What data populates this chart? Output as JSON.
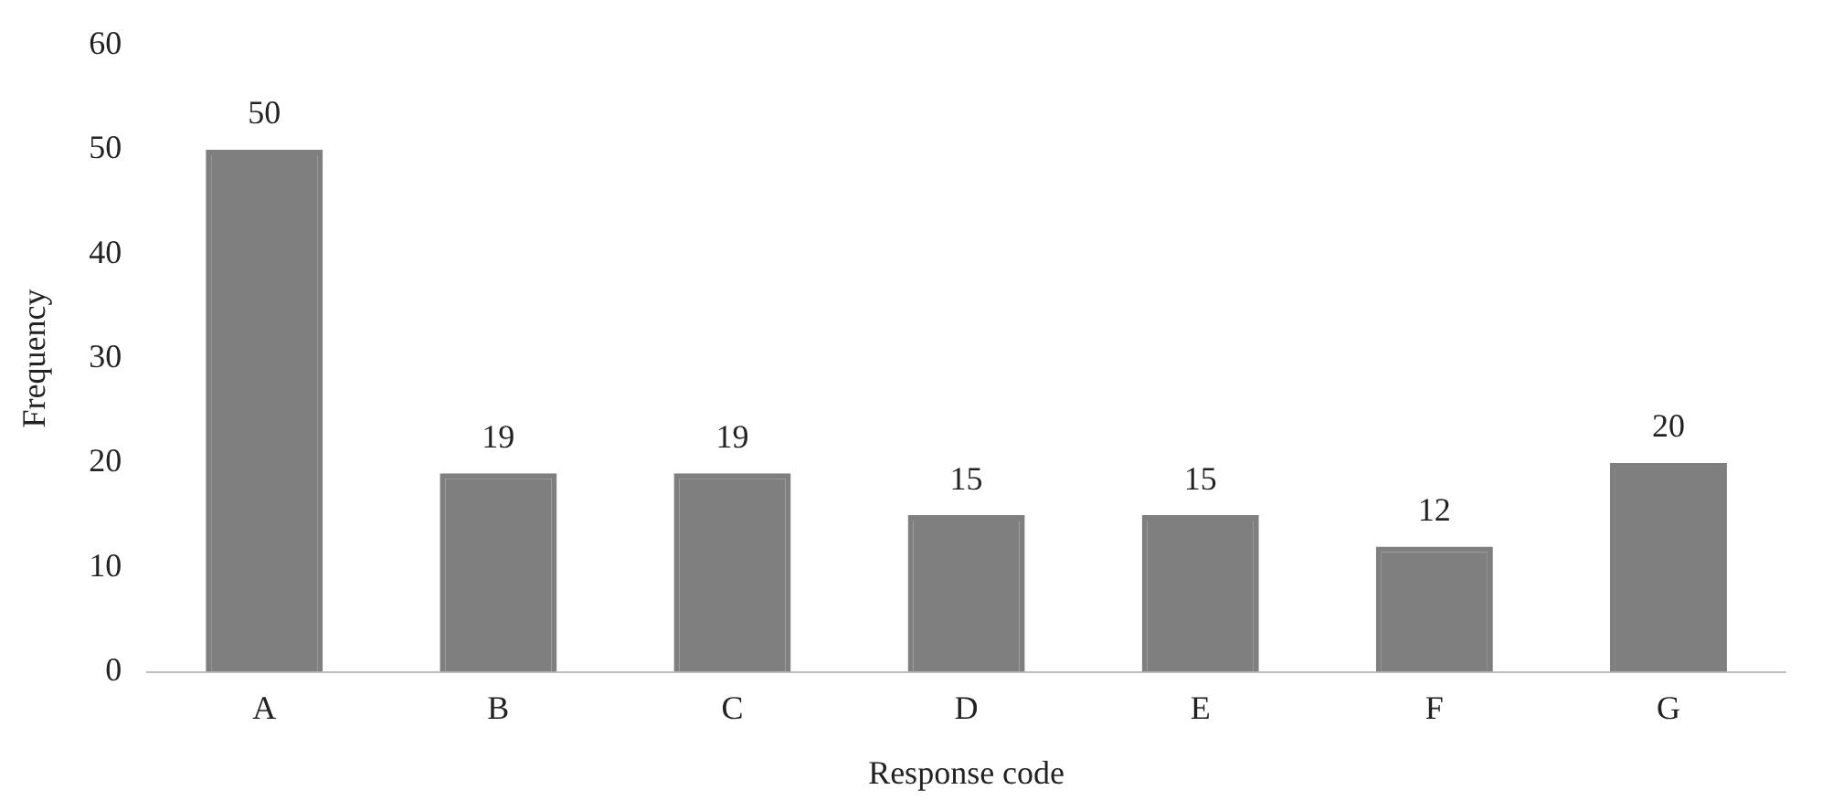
{
  "chart_data": {
    "type": "bar",
    "xlabel": "Response code",
    "ylabel": "Frequency",
    "categories": [
      "A",
      "B",
      "C",
      "D",
      "E",
      "F",
      "G"
    ],
    "values": [
      50,
      19,
      19,
      15,
      15,
      12,
      20
    ],
    "color": "#7f7f7f",
    "ylim": [
      0,
      60
    ],
    "yticks": [
      0,
      10,
      20,
      30,
      40,
      50,
      60
    ],
    "grid": false,
    "legend": false,
    "data_labels": true
  }
}
